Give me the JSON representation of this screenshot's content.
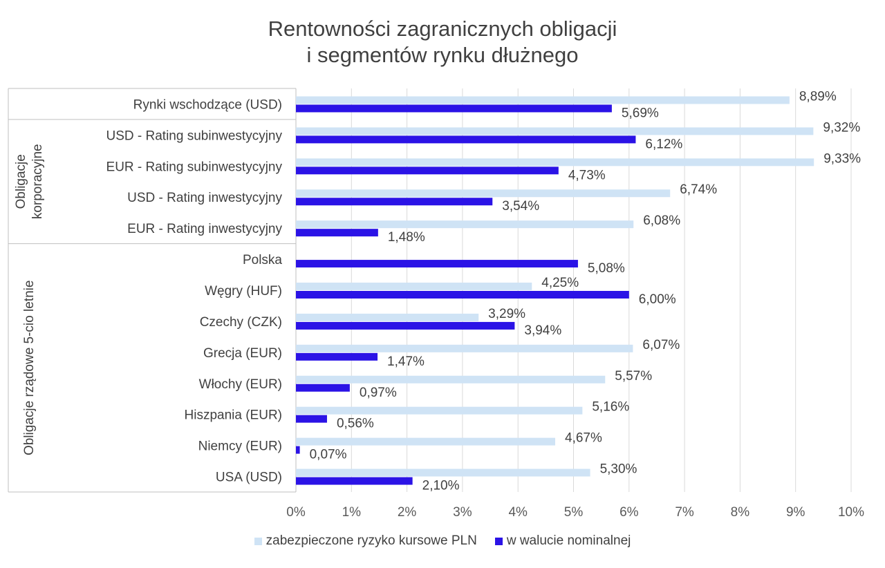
{
  "title_lines": [
    "Rentowności zagranicznych obligacji",
    "i segmentów rynku dłużnego"
  ],
  "colors": {
    "hedged": "#cfe3f5",
    "nominal": "#2b13e6",
    "grid": "#d9d9d9",
    "axis": "#bfbfbf"
  },
  "chart_data": {
    "type": "bar",
    "orientation": "horizontal",
    "categories": [
      "Rynki wschodzące (USD)",
      "USD - Rating subinwestycyjny",
      "EUR - Rating subinwestycyjny",
      "USD - Rating inwestycyjny",
      "EUR - Rating inwestycyjny",
      "Polska",
      "Węgry (HUF)",
      "Czechy (CZK)",
      "Grecja (EUR)",
      "Włochy (EUR)",
      "Hiszpania (EUR)",
      "Niemcy (EUR)",
      "USA (USD)"
    ],
    "groups": [
      {
        "label": "",
        "start": 0,
        "end": 0
      },
      {
        "label": "Obligacje korporacyjne",
        "lines": [
          "Obligacje",
          "korporacyjne"
        ],
        "start": 1,
        "end": 4
      },
      {
        "label": "Obligacje rządowe 5-cio letnie",
        "lines": [
          "Obligacje rządowe 5-cio letnie"
        ],
        "start": 5,
        "end": 12
      }
    ],
    "series": [
      {
        "name": "zabezpieczone ryzyko kursowe PLN",
        "values": [
          8.89,
          9.32,
          9.33,
          6.74,
          6.08,
          null,
          4.25,
          3.29,
          6.07,
          5.57,
          5.16,
          4.67,
          5.3
        ],
        "labels": [
          "8,89%",
          "9,32%",
          "9,33%",
          "6,74%",
          "6,08%",
          "",
          "4,25%",
          "3,29%",
          "6,07%",
          "5,57%",
          "5,16%",
          "4,67%",
          "5,30%"
        ]
      },
      {
        "name": "w walucie nominalnej",
        "values": [
          5.69,
          6.12,
          4.73,
          3.54,
          1.48,
          5.08,
          6.0,
          3.94,
          1.47,
          0.97,
          0.56,
          0.07,
          2.1
        ],
        "labels": [
          "5,69%",
          "6,12%",
          "4,73%",
          "3,54%",
          "1,48%",
          "5,08%",
          "6,00%",
          "3,94%",
          "1,47%",
          "0,97%",
          "0,56%",
          "0,07%",
          "2,10%"
        ]
      }
    ],
    "xlim": [
      0,
      10
    ],
    "xticks": [
      "0%",
      "1%",
      "2%",
      "3%",
      "4%",
      "5%",
      "6%",
      "7%",
      "8%",
      "9%",
      "10%"
    ],
    "grid": true,
    "legend_position": "bottom"
  }
}
